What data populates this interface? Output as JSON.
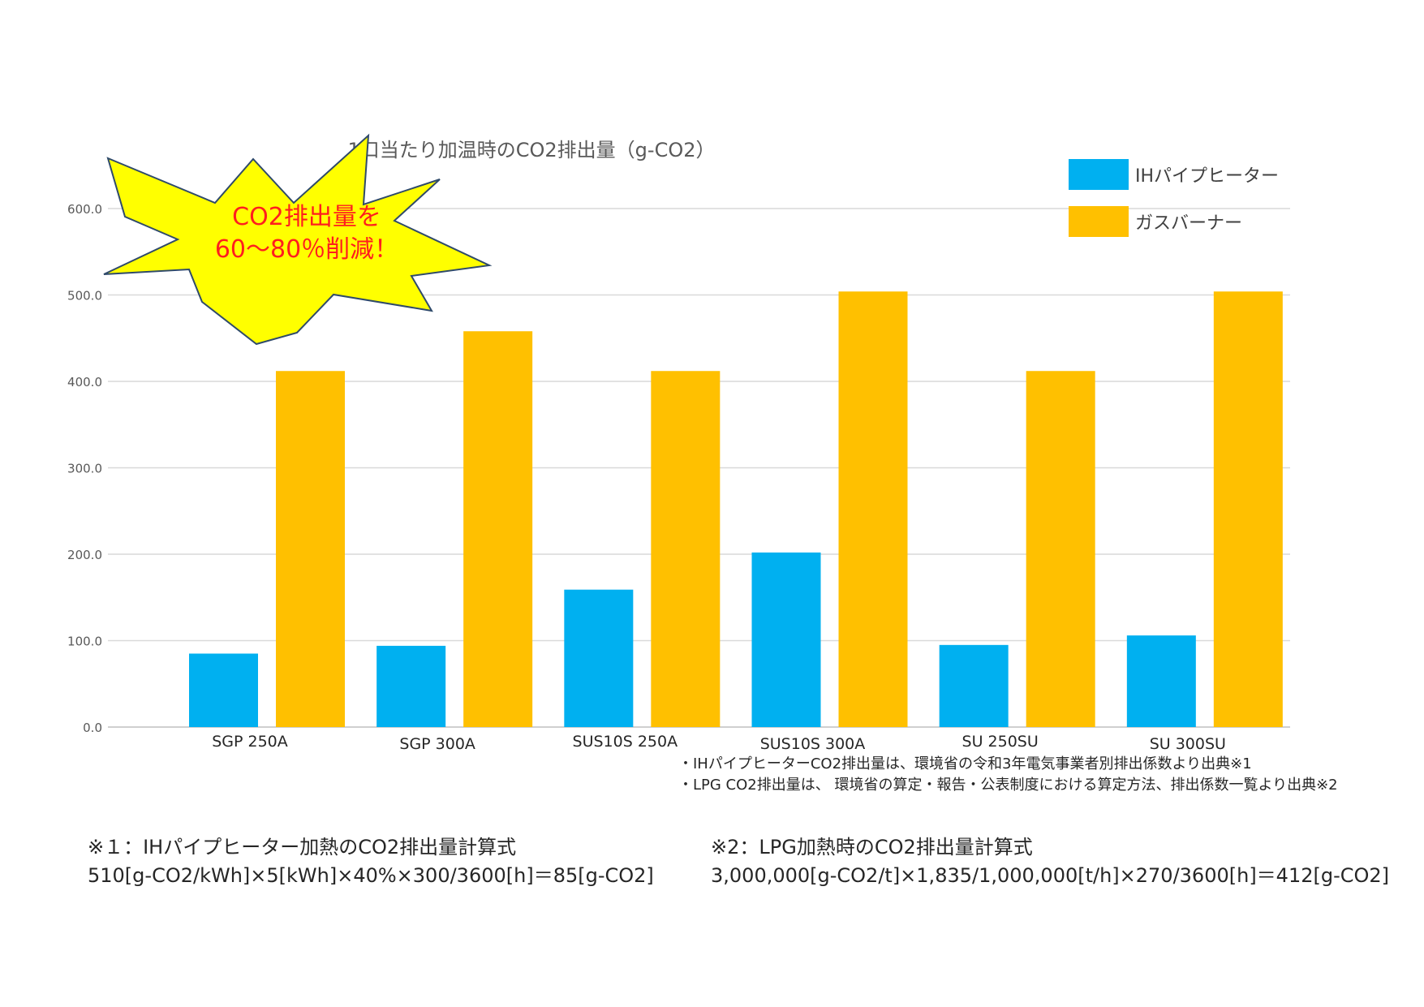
{
  "chart_data": {
    "type": "bar",
    "title": "1口当たり加温時のCO2排出量（g-CO2）",
    "categories": [
      "SGP 250A",
      "SGP 300A",
      "SUS10S 250A",
      "SUS10S 300A",
      "SU 250SU",
      "SU 300SU"
    ],
    "series": [
      {
        "name": "IHパイプヒーター",
        "color": "#00b0f0",
        "values": [
          85,
          94,
          159,
          202,
          95,
          106
        ]
      },
      {
        "name": "ガスバーナー",
        "color": "#ffc000",
        "values": [
          412,
          458,
          412,
          504,
          412,
          504
        ]
      }
    ],
    "ylim": [
      0,
      600
    ],
    "yticks": [
      "0.0",
      "100.0",
      "200.0",
      "300.0",
      "400.0",
      "500.0",
      "600.0"
    ],
    "grid": true,
    "legend": "top-right"
  },
  "callout": {
    "line1": "CO2排出量を",
    "line2": "60～80％削減！",
    "fill": "#ffff00",
    "text_color": "#ff1e1e"
  },
  "notes": [
    "・IHパイプヒーターCO2排出量は、環境省の令和3年電気事業者別排出係数より出典※1",
    "・LPG CO2排出量は、 環境省の算定・報告・公表制度における算定方法、排出係数一覧より出典※2"
  ],
  "formula1": {
    "title": "※１：IHパイプヒーター加熱のCO2排出量計算式",
    "expr": "510[g-CO2/kWh]×5[kWh]×40%×300/3600[h]＝85[g-CO2]"
  },
  "formula2": {
    "title": "※2：LPG加熱時のCO2排出量計算式",
    "expr": "3,000,000[g-CO2/t]×1,835/1,000,000[t/h]×270/3600[h]＝412[g-CO2]"
  }
}
